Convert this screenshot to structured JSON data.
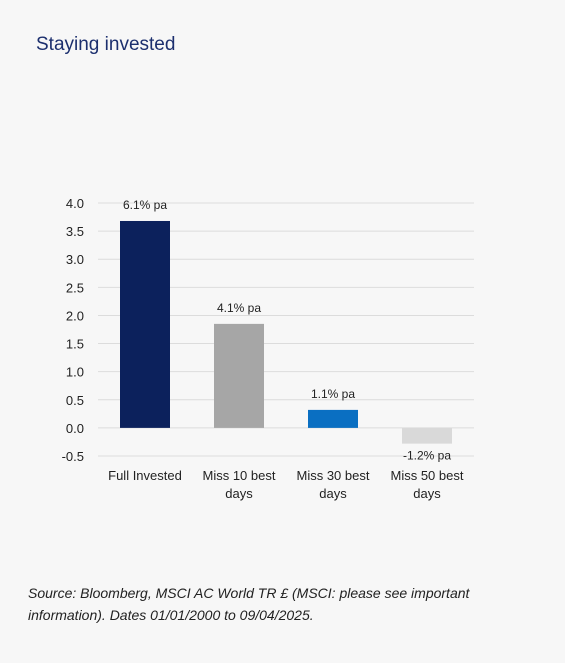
{
  "title": "Staying invested",
  "source": "Source: Bloomberg, MSCI AC World TR £ (MSCI: please see important information). Dates 01/01/2000 to 09/04/2025.",
  "chart_data": {
    "type": "bar",
    "categories": [
      [
        "Full Invested"
      ],
      [
        "Miss 10 best",
        "days"
      ],
      [
        "Miss 30 best",
        "days"
      ],
      [
        "Miss 50 best",
        "days"
      ]
    ],
    "values": [
      3.68,
      1.85,
      0.32,
      -0.28
    ],
    "data_labels": [
      "6.1% pa",
      "4.1% pa",
      "1.1% pa",
      "-1.2% pa"
    ],
    "colors": [
      "#0c215c",
      "#a6a6a6",
      "#0a6fc2",
      "#d9d9d9"
    ],
    "yticks": [
      "4.0",
      "3.5",
      "3.0",
      "2.5",
      "2.0",
      "1.5",
      "1.0",
      "0.5",
      "0.0",
      "-0.5"
    ],
    "ylim": [
      -0.5,
      4.0
    ],
    "grid": true,
    "xlabel": "",
    "ylabel": ""
  }
}
